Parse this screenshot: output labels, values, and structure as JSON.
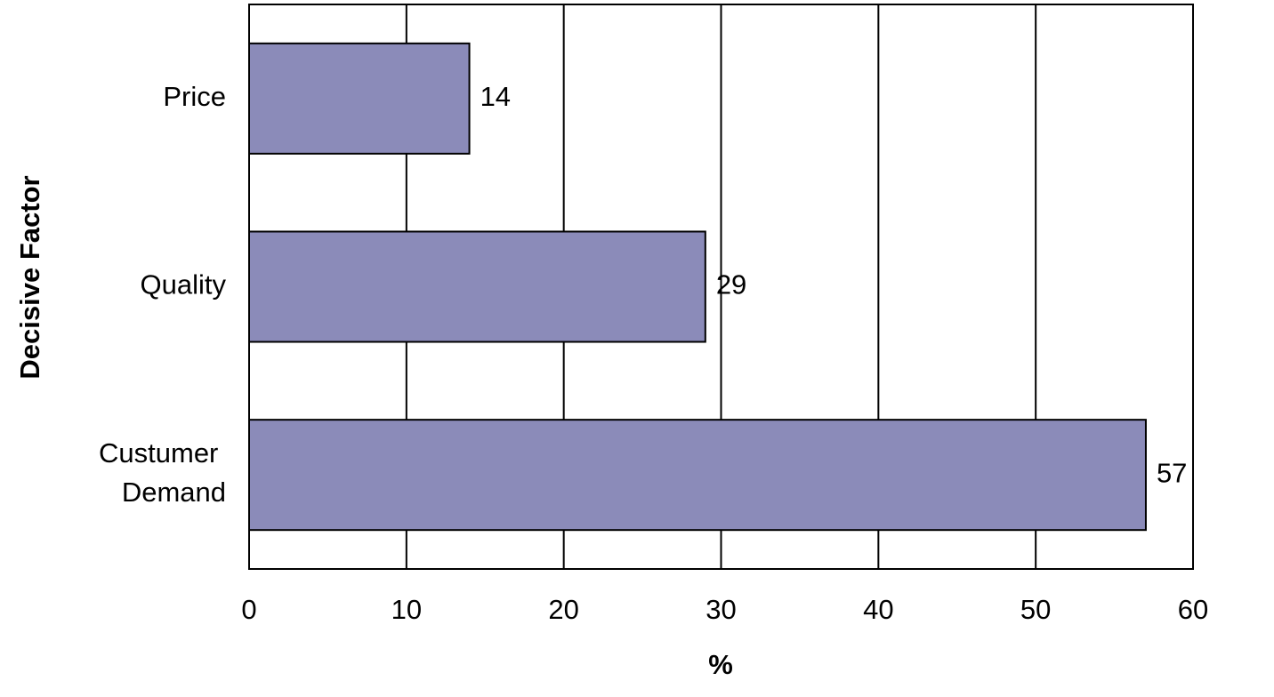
{
  "chart_data": {
    "type": "bar",
    "orientation": "horizontal",
    "x_label": "%",
    "y_label": "Decisive Factor",
    "categories": [
      "Price",
      "Quality",
      "Custumer Demand"
    ],
    "values": [
      14,
      29,
      57
    ],
    "color": "#8b8bb9",
    "xlim": [
      0,
      60
    ],
    "xticks": [
      0,
      10,
      20,
      30,
      40,
      50,
      60
    ],
    "grid": true
  }
}
